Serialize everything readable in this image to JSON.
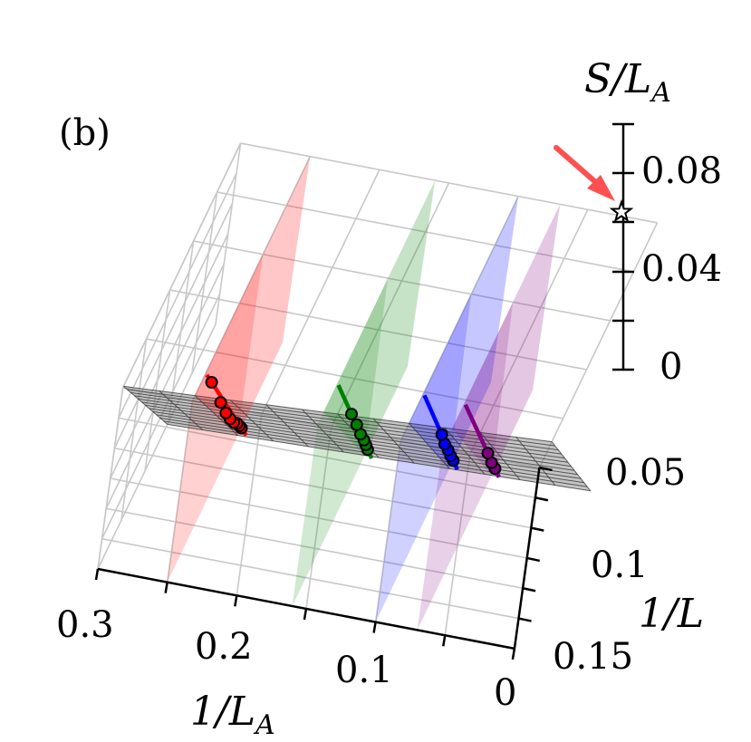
{
  "chart_data": {
    "type": "surface3d",
    "panel_label": "(b)",
    "axes": {
      "x": {
        "label": "1/L_A",
        "label_main": "1/L",
        "label_sub": "A",
        "range": [
          0,
          0.3
        ],
        "ticks": [
          "0.3",
          "0.2",
          "0.1",
          "0"
        ]
      },
      "y": {
        "label": "1/L",
        "range": [
          0,
          0.15
        ],
        "ticks": [
          "0.05",
          "0.1",
          "0.15"
        ]
      },
      "z": {
        "label": "S/L_A",
        "label_main": "S/L",
        "label_sub": "A",
        "range": [
          0,
          0.1
        ],
        "ticks": [
          "0",
          "0.04",
          "0.08"
        ]
      }
    },
    "grid": true,
    "surface": {
      "description": "extrapolation surface",
      "color": "#7f7f7f"
    },
    "series": [
      {
        "color": "#ff0000",
        "inv_LA": 0.25,
        "points": [
          {
            "inv_L": 0.0,
            "S_LA": 0.063
          },
          {
            "inv_L": 0.008,
            "S_LA": 0.06
          },
          {
            "inv_L": 0.016,
            "S_LA": 0.057
          },
          {
            "inv_L": 0.025,
            "S_LA": 0.053
          },
          {
            "inv_L": 0.038,
            "S_LA": 0.048
          },
          {
            "inv_L": 0.055,
            "S_LA": 0.042
          },
          {
            "inv_L": 0.08,
            "S_LA": 0.034
          },
          {
            "inv_L": 0.125,
            "S_LA": 0.02
          }
        ]
      },
      {
        "color": "#008000",
        "inv_LA": 0.16,
        "points": [
          {
            "inv_L": 0.0,
            "S_LA": 0.064
          },
          {
            "inv_L": 0.01,
            "S_LA": 0.061
          },
          {
            "inv_L": 0.02,
            "S_LA": 0.058
          },
          {
            "inv_L": 0.035,
            "S_LA": 0.053
          },
          {
            "inv_L": 0.055,
            "S_LA": 0.047
          },
          {
            "inv_L": 0.08,
            "S_LA": 0.039
          }
        ]
      },
      {
        "color": "#0000ff",
        "inv_LA": 0.1,
        "points": [
          {
            "inv_L": 0.0,
            "S_LA": 0.066
          },
          {
            "inv_L": 0.012,
            "S_LA": 0.062
          },
          {
            "inv_L": 0.025,
            "S_LA": 0.058
          },
          {
            "inv_L": 0.04,
            "S_LA": 0.053
          },
          {
            "inv_L": 0.058,
            "S_LA": 0.048
          }
        ]
      },
      {
        "color": "#800080",
        "inv_LA": 0.07,
        "points": [
          {
            "inv_L": 0.0,
            "S_LA": 0.066
          },
          {
            "inv_L": 0.015,
            "S_LA": 0.061
          },
          {
            "inv_L": 0.035,
            "S_LA": 0.055
          }
        ]
      }
    ],
    "extrapolated_point": {
      "inv_LA": 0,
      "inv_L": 0,
      "S_LA": 0.064,
      "marker": "star",
      "arrow_color": "#ff5050"
    }
  }
}
